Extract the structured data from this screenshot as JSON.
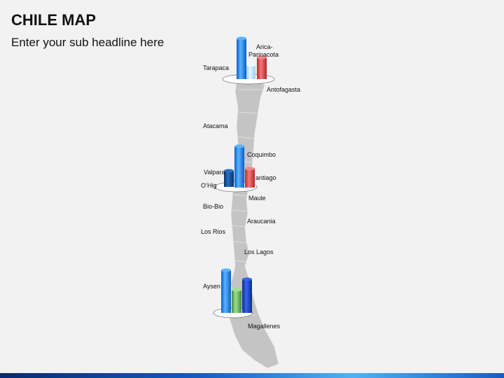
{
  "header": {
    "title": "CHILE MAP",
    "subtitle": "Enter your sub headline here"
  },
  "regions": [
    {
      "lines": [
        "Arica-",
        "Parinacota"
      ]
    },
    {
      "lines": [
        "Tarapaca"
      ]
    },
    {
      "lines": [
        "Antofagasta"
      ]
    },
    {
      "lines": [
        "Atacama"
      ]
    },
    {
      "lines": [
        "Coquimbo"
      ]
    },
    {
      "lines": [
        "Valpara"
      ]
    },
    {
      "lines": [
        "antiago"
      ]
    },
    {
      "lines": [
        "O’Hig"
      ]
    },
    {
      "lines": [
        "Maule"
      ]
    },
    {
      "lines": [
        "Bio-Bio"
      ]
    },
    {
      "lines": [
        "Araucania"
      ]
    },
    {
      "lines": [
        "Los Rios"
      ]
    },
    {
      "lines": [
        "Los Lagos"
      ]
    },
    {
      "lines": [
        "Aysen"
      ]
    },
    {
      "lines": [
        "Magallenes"
      ]
    }
  ]
}
